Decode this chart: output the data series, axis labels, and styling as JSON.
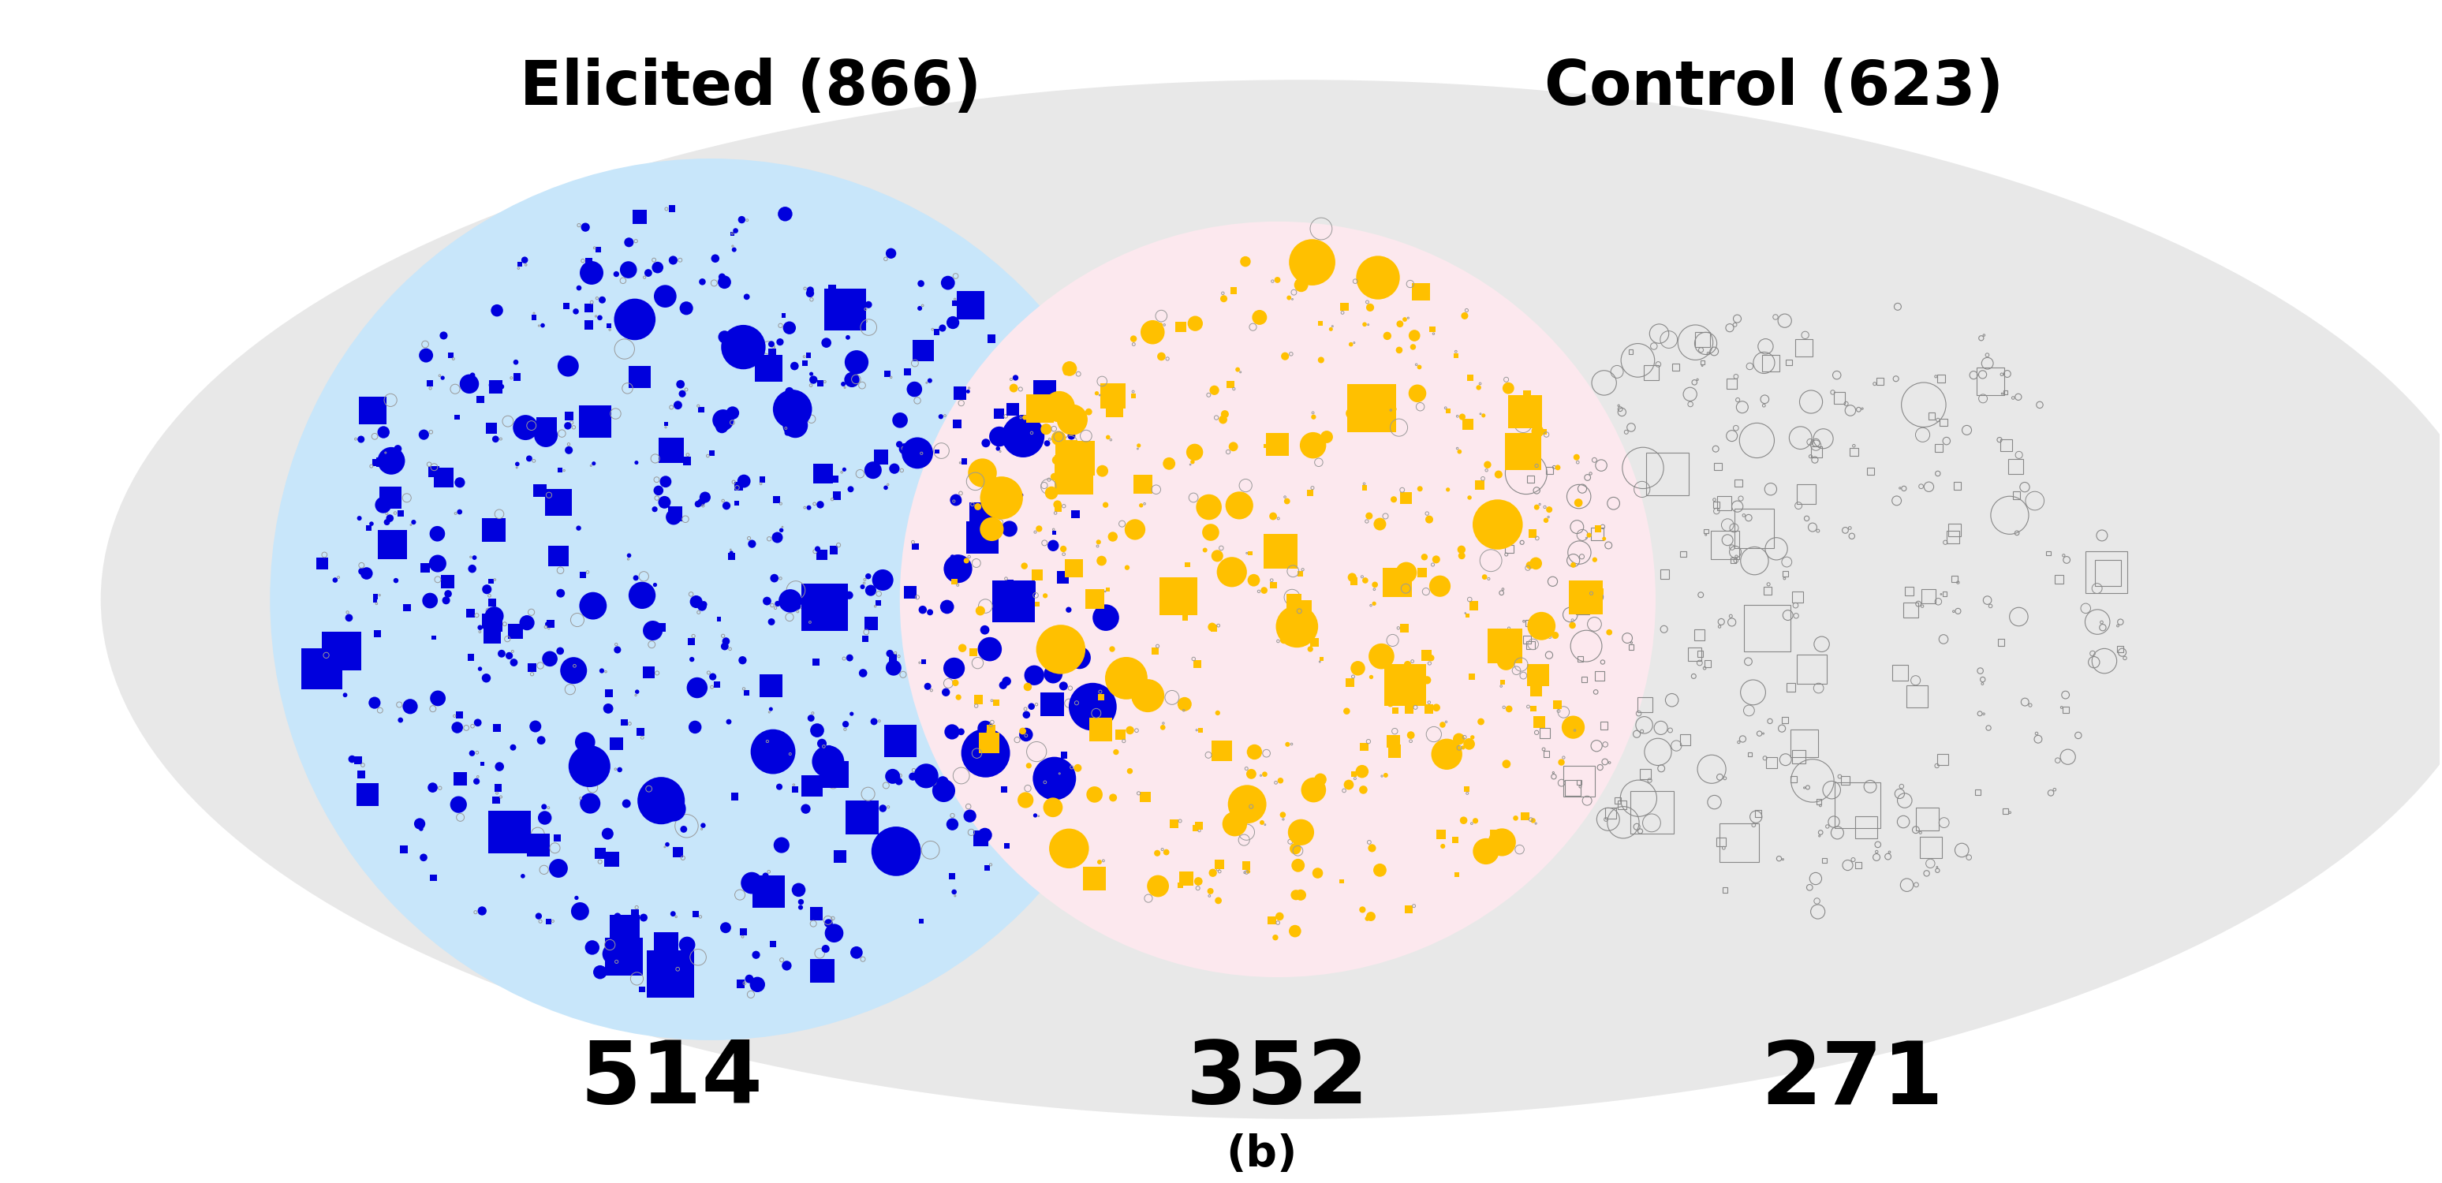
{
  "title_left": "Elicited (866)",
  "title_right": "Control (623)",
  "label_b": "(b)",
  "count_left": "514",
  "count_middle": "352",
  "count_right": "271",
  "bg_color": "#ffffff",
  "left_circle_color": "#c8e6fa",
  "middle_circle_color": "#fce8ee",
  "outer_ellipse_color": "#e8e8e8",
  "blue_dot_color": "#0000dd",
  "yellow_dot_color": "#ffc000",
  "gray_fill_color": "#b0b0b0",
  "gray_edge_color": "#888888",
  "title_fontsize": 56,
  "count_fontsize": 80,
  "label_fontsize": 40,
  "n_blue": 514,
  "n_yellow": 352,
  "n_gray": 271
}
